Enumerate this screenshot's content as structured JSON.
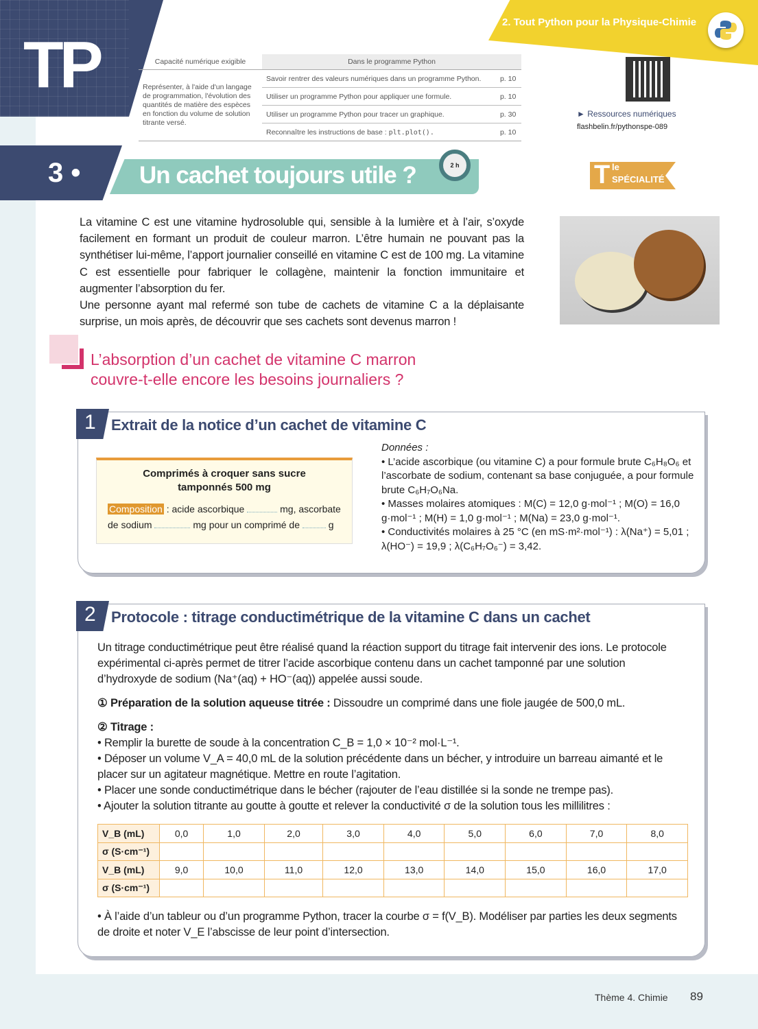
{
  "header": {
    "tp_label": "TP",
    "chapter": "2. Tout Python pour la Physique-Chimie",
    "capacity_table": {
      "col1": "Capacité numérique exigible",
      "col2": "Dans le programme Python",
      "capacity": "Représenter, à l'aide d'un langage de programmation, l'évolution des quantités de matière des espèces en fonction du volume de solution titrante versé.",
      "rows": [
        {
          "text": "Savoir rentrer des valeurs numériques dans un programme Python.",
          "page": "p. 10"
        },
        {
          "text": "Utiliser un programme Python pour appliquer une formule.",
          "page": "p. 10"
        },
        {
          "text": "Utiliser un programme Python pour tracer un graphique.",
          "page": "p. 30"
        },
        {
          "text": "Reconnaître les instructions de base : ",
          "code": "plt.plot().",
          "page": "p. 10"
        }
      ]
    },
    "resources_label": "► Ressources numériques",
    "resources_url": "flashbelin.fr/pythonspe-089",
    "level_badge": {
      "T": "T",
      "le": "le",
      "label": "SPÉCIALITÉ"
    }
  },
  "title": {
    "number": "3 •",
    "text": "Un cachet toujours utile ?",
    "duration": "2 h"
  },
  "intro": [
    "La vitamine C est une vitamine hydrosoluble qui, sensible à la lumière et à l’air, s’oxyde facilement en formant un produit de couleur marron. L’être humain ne pouvant pas la synthétiser lui-même, l’apport journalier conseillé en vitamine C est de 100 mg. La vitamine C est essentielle pour fabriquer le collagène, maintenir la fonction immunitaire et augmenter l’absorption du fer.",
    "Une personne ayant mal refermé son tube de cachets de vitamine C a la déplaisante surprise, un mois après, de découvrir que ses cachets sont devenus marron !"
  ],
  "problem": [
    "L’absorption d’un cachet de vitamine C marron",
    "couvre-t-elle encore les besoins journaliers ?"
  ],
  "doc1": {
    "number": "1",
    "title": "Extrait de la notice d’un cachet de vitamine C",
    "notice": {
      "heading1": "Comprimés à croquer sans sucre",
      "heading2": "tamponnés 500 mg",
      "tag": "Composition",
      "t1": " : acide ascorbique ",
      "t2": " mg, ascorbate de sodium ",
      "t3": " mg pour un comprimé de ",
      "t4": " g"
    },
    "data_title": "Données :",
    "data": [
      "• L’acide ascorbique (ou vitamine C) a pour formule brute C₆H₈O₆ et l’ascorbate de sodium, contenant sa base conjuguée, a pour formule brute C₆H₇O₆Na.",
      "• Masses molaires atomiques : M(C) = 12,0 g·mol⁻¹ ; M(O) = 16,0 g·mol⁻¹ ; M(H) = 1,0 g·mol⁻¹ ; M(Na) = 23,0 g·mol⁻¹.",
      "• Conductivités molaires à 25 °C (en mS·m²·mol⁻¹) : λ(Na⁺) = 5,01 ; λ(HO⁻) = 19,9 ; λ(C₆H₇O₆⁻) = 3,42."
    ]
  },
  "doc2": {
    "number": "2",
    "title": "Protocole : titrage conductimétrique de la vitamine C dans un cachet",
    "intro": "Un titrage conductimétrique peut être réalisé quand la réaction support du titrage fait intervenir des ions. Le protocole expérimental ci-après permet de titrer l’acide ascorbique contenu dans un cachet tamponné par une solution d’hydroxyde de sodium (Na⁺(aq) + HO⁻(aq)) appelée aussi soude.",
    "step1_label": "① Préparation de la solution aqueuse titrée :",
    "step1_text": " Dissoudre un comprimé dans une fiole jaugée de 500,0 mL.",
    "step2_label": "② Titrage :",
    "bullets": [
      "• Remplir la burette de soude à la concentration C_B = 1,0 × 10⁻² mol·L⁻¹.",
      "• Déposer un volume V_A = 40,0 mL de la solution précédente dans un bécher, y introduire un barreau aimanté et le placer sur un agitateur magnétique. Mettre en route l’agitation.",
      "• Placer une sonde conductimétrique dans le bécher (rajouter de l’eau distillée si la sonde ne trempe pas).",
      "• Ajouter la solution titrante au goutte à goutte et relever la conductivité σ de la solution tous les millilitres :"
    ],
    "table": {
      "vb_header": "V_B (mL)",
      "sigma_header": "σ (S·cm⁻¹)",
      "row1": [
        "0,0",
        "1,0",
        "2,0",
        "3,0",
        "4,0",
        "5,0",
        "6,0",
        "7,0",
        "8,0"
      ],
      "row2": [
        "9,0",
        "10,0",
        "11,0",
        "12,0",
        "13,0",
        "14,0",
        "15,0",
        "16,0",
        "17,0"
      ]
    },
    "final": "• À l’aide d’un tableur ou d’un programme Python, tracer la courbe σ = f(V_B). Modéliser par parties les deux segments de droite et noter V_E l’abscisse de leur point d’intersection."
  },
  "footer": {
    "theme": "Thème 4. Chimie",
    "page": "89"
  },
  "colors": {
    "navy": "#3c4a70",
    "teal": "#8fcabd",
    "magenta": "#d3336b",
    "yellow": "#f2d22e",
    "orange": "#e0982f"
  }
}
